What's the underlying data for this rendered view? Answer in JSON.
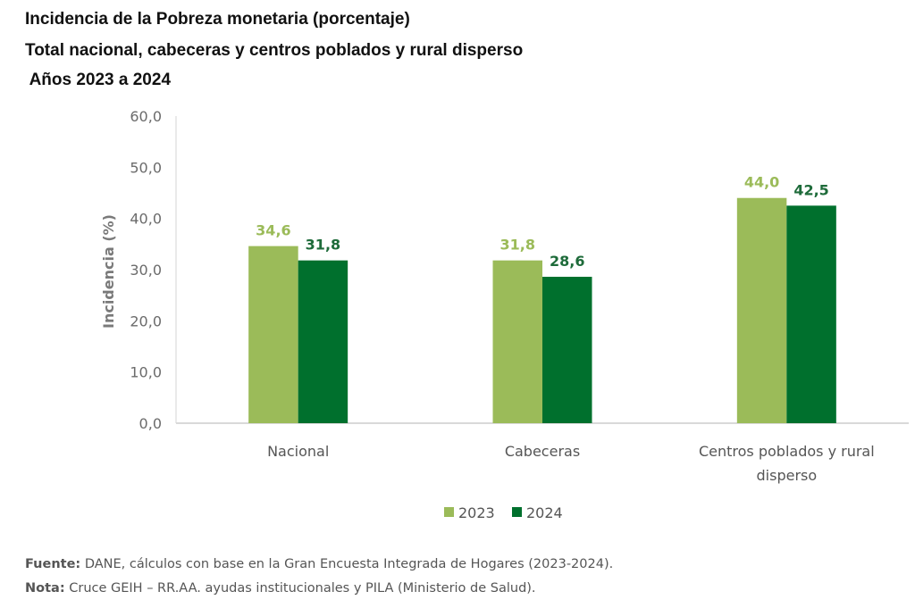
{
  "title_lines": [
    "Incidencia de la Pobreza monetaria (porcentaje)",
    "Total nacional, cabeceras y centros poblados y rural disperso",
    " Años 2023 a 2024"
  ],
  "chart_data": {
    "type": "bar",
    "title": "Incidencia de la Pobreza monetaria (porcentaje) — Total nacional, cabeceras y centros poblados y rural disperso — Años 2023 a 2024",
    "categories": [
      [
        "Nacional"
      ],
      [
        "Cabeceras"
      ],
      [
        "Centros poblados y rural",
        "disperso"
      ]
    ],
    "series": [
      {
        "name": "2023",
        "color": "#9bbb59",
        "label_color": "#9bbb59",
        "values": [
          34.6,
          31.8,
          44.0
        ],
        "labels": [
          "34,6",
          "31,8",
          "44,0"
        ]
      },
      {
        "name": "2024",
        "color": "#00702d",
        "label_color": "#1e6b3a",
        "values": [
          31.8,
          28.6,
          42.5
        ],
        "labels": [
          "31,8",
          "28,6",
          "42,5"
        ]
      }
    ],
    "xlabel": "",
    "ylabel": "Incidencia (%)",
    "ylim": [
      0,
      60
    ],
    "yticks": [
      0,
      10,
      20,
      30,
      40,
      50,
      60
    ],
    "ytick_labels": [
      "0,0",
      "10,0",
      "20,0",
      "30,0",
      "40,0",
      "50,0",
      "60,0"
    ],
    "grid": false,
    "legend_position": "bottom"
  },
  "footer": {
    "source_label": "Fuente:",
    "source_text": " DANE, cálculos con base en la Gran Encuesta Integrada de Hogares (2023-2024).",
    "note_label": "Nota:",
    "note_text": " Cruce GEIH – RR.AA. ayudas institucionales y PILA (Ministerio de Salud)."
  }
}
